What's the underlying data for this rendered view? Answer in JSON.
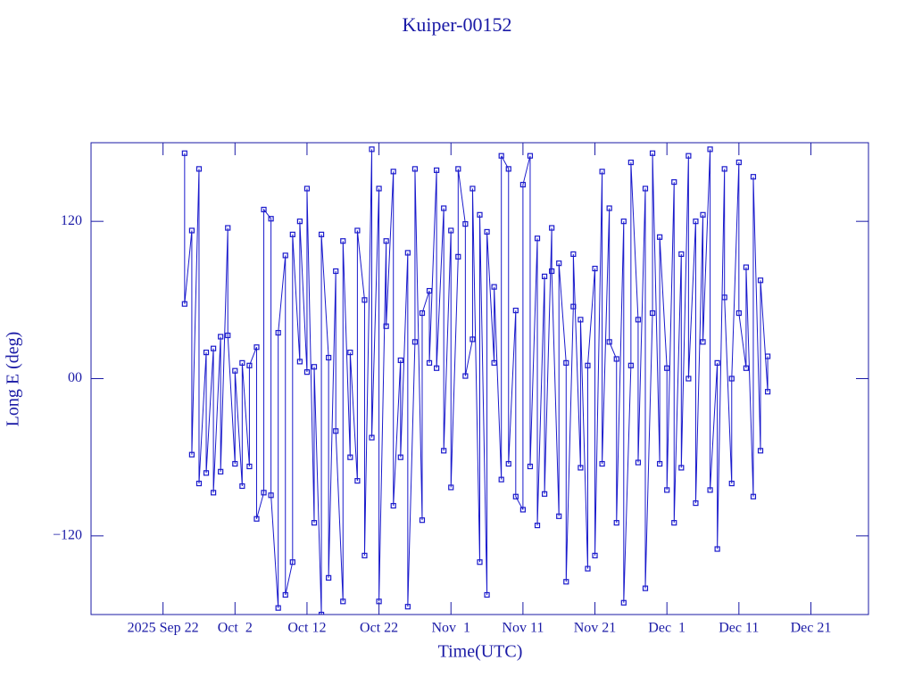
{
  "chart_data": {
    "type": "line",
    "title": "Kuiper-00152",
    "x_label": "Time(UTC)",
    "y_label": "Long E (deg)",
    "xlim": [
      "2025-09-12",
      "2025-12-29"
    ],
    "xticks": [
      {
        "value": "2025-09-22",
        "label": "2025 Sep 22"
      },
      {
        "value": "2025-10-02",
        "label": "Oct  2"
      },
      {
        "value": "2025-10-12",
        "label": "Oct 12"
      },
      {
        "value": "2025-10-22",
        "label": "Oct 22"
      },
      {
        "value": "2025-11-01",
        "label": "Nov  1"
      },
      {
        "value": "2025-11-11",
        "label": "Nov 11"
      },
      {
        "value": "2025-11-21",
        "label": "Nov 21"
      },
      {
        "value": "2025-12-01",
        "label": "Dec  1"
      },
      {
        "value": "2025-12-11",
        "label": "Dec 11"
      },
      {
        "value": "2025-12-21",
        "label": "Dec 21"
      }
    ],
    "ylim": [
      -180,
      180
    ],
    "yticks": [
      {
        "value": -120,
        "label": "−120"
      },
      {
        "value": 0,
        "label": "00"
      },
      120
    ],
    "x": [
      "2025-09-25",
      "2025-09-25",
      "2025-09-26",
      "2025-09-26",
      "2025-09-27",
      "2025-09-27",
      "2025-09-28",
      "2025-09-28",
      "2025-09-29",
      "2025-09-29",
      "2025-09-30",
      "2025-09-30",
      "2025-10-01",
      "2025-10-01",
      "2025-10-02",
      "2025-10-02",
      "2025-10-03",
      "2025-10-03",
      "2025-10-04",
      "2025-10-04",
      "2025-10-05",
      "2025-10-05",
      "2025-10-06",
      "2025-10-06",
      "2025-10-07",
      "2025-10-07",
      "2025-10-08",
      "2025-10-08",
      "2025-10-09",
      "2025-10-09",
      "2025-10-10",
      "2025-10-10",
      "2025-10-11",
      "2025-10-11",
      "2025-10-12",
      "2025-10-12",
      "2025-10-13",
      "2025-10-13",
      "2025-10-14",
      "2025-10-14",
      "2025-10-15",
      "2025-10-15",
      "2025-10-16",
      "2025-10-16",
      "2025-10-17",
      "2025-10-17",
      "2025-10-18",
      "2025-10-18",
      "2025-10-19",
      "2025-10-19",
      "2025-10-20",
      "2025-10-20",
      "2025-10-21",
      "2025-10-21",
      "2025-10-22",
      "2025-10-22",
      "2025-10-23",
      "2025-10-23",
      "2025-10-24",
      "2025-10-24",
      "2025-10-25",
      "2025-10-25",
      "2025-10-26",
      "2025-10-26",
      "2025-10-27",
      "2025-10-27",
      "2025-10-28",
      "2025-10-28",
      "2025-10-29",
      "2025-10-29",
      "2025-10-30",
      "2025-10-30",
      "2025-10-31",
      "2025-10-31",
      "2025-11-01",
      "2025-11-01",
      "2025-11-02",
      "2025-11-02",
      "2025-11-03",
      "2025-11-03",
      "2025-11-04",
      "2025-11-04",
      "2025-11-05",
      "2025-11-05",
      "2025-11-06",
      "2025-11-06",
      "2025-11-07",
      "2025-11-07",
      "2025-11-08",
      "2025-11-08",
      "2025-11-09",
      "2025-11-09",
      "2025-11-10",
      "2025-11-10",
      "2025-11-11",
      "2025-11-11",
      "2025-11-12",
      "2025-11-12",
      "2025-11-13",
      "2025-11-13",
      "2025-11-14",
      "2025-11-14",
      "2025-11-15",
      "2025-11-15",
      "2025-11-16",
      "2025-11-16",
      "2025-11-17",
      "2025-11-17",
      "2025-11-18",
      "2025-11-18",
      "2025-11-19",
      "2025-11-19",
      "2025-11-20",
      "2025-11-20",
      "2025-11-21",
      "2025-11-21",
      "2025-11-22",
      "2025-11-22",
      "2025-11-23",
      "2025-11-23",
      "2025-11-24",
      "2025-11-24",
      "2025-11-25",
      "2025-11-25",
      "2025-11-26",
      "2025-11-26",
      "2025-11-27",
      "2025-11-27",
      "2025-11-28",
      "2025-11-28",
      "2025-11-29",
      "2025-11-29",
      "2025-11-30",
      "2025-11-30",
      "2025-12-01",
      "2025-12-01",
      "2025-12-02",
      "2025-12-02",
      "2025-12-03",
      "2025-12-03",
      "2025-12-04",
      "2025-12-04",
      "2025-12-05",
      "2025-12-05",
      "2025-12-06",
      "2025-12-06",
      "2025-12-07",
      "2025-12-07",
      "2025-12-08",
      "2025-12-08",
      "2025-12-09",
      "2025-12-09",
      "2025-12-10",
      "2025-12-10",
      "2025-12-11",
      "2025-12-11",
      "2025-12-12",
      "2025-12-12",
      "2025-12-13",
      "2025-12-13",
      "2025-12-14",
      "2025-12-14",
      "2025-12-15",
      "2025-12-15"
    ],
    "series": [
      {
        "color": "#1a1acc",
        "values": [
          172,
          57,
          113,
          -58,
          160,
          -80,
          20,
          -72,
          23,
          -87,
          32,
          -71,
          115,
          33,
          -65,
          6,
          -82,
          12,
          -67,
          10,
          24,
          -107,
          -87,
          129,
          122,
          -89,
          -175,
          35,
          94,
          -165,
          -140,
          110,
          13,
          120,
          5,
          145,
          -110,
          9,
          -180,
          110,
          16,
          -152,
          82,
          -40,
          -170,
          105,
          -60,
          20,
          -78,
          113,
          60,
          -135,
          175,
          -45,
          145,
          -170,
          105,
          40,
          158,
          -97,
          14,
          -60,
          96,
          -174,
          28,
          160,
          -108,
          50,
          67,
          12,
          159,
          8,
          130,
          -55,
          113,
          -83,
          93,
          160,
          118,
          2,
          30,
          145,
          -140,
          125,
          -165,
          112,
          12,
          70,
          -77,
          170,
          160,
          -65,
          52,
          -90,
          -100,
          148,
          170,
          -67,
          107,
          -112,
          78,
          -88,
          115,
          82,
          -105,
          88,
          12,
          -155,
          55,
          95,
          -68,
          45,
          -145,
          10,
          84,
          -135,
          158,
          -65,
          130,
          28,
          15,
          -110,
          120,
          -171,
          10,
          165,
          45,
          -64,
          145,
          -160,
          50,
          172,
          -65,
          108,
          8,
          -85,
          150,
          -110,
          95,
          -68,
          170,
          0,
          120,
          -95,
          125,
          28,
          175,
          -85,
          12,
          -130,
          160,
          62,
          -80,
          0,
          165,
          50,
          8,
          85,
          -90,
          154,
          -55,
          75,
          -10,
          17
        ]
      }
    ]
  }
}
